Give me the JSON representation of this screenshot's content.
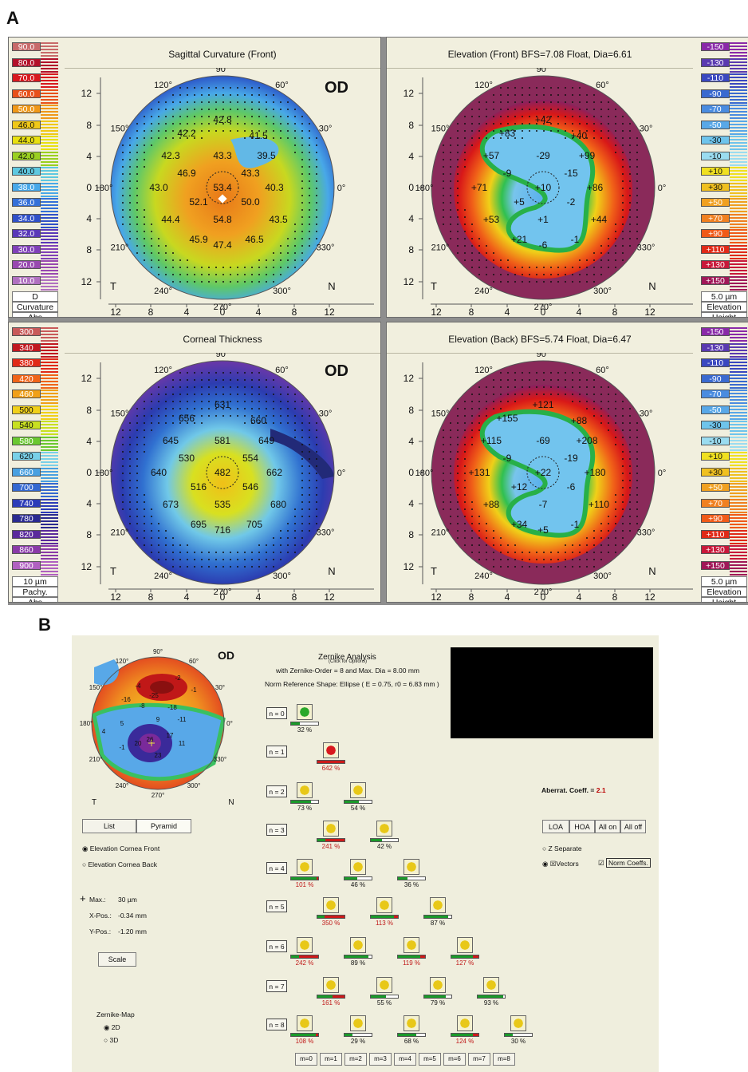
{
  "figure": {
    "label_a": "A",
    "label_b": "B"
  },
  "panel_a": {
    "od_label": "OD",
    "side_left": "T",
    "side_right": "N",
    "axis_ticks_y": [
      "12",
      "8",
      "4",
      "0",
      "4",
      "8",
      "12"
    ],
    "axis_ticks_x": [
      "12",
      "8",
      "4",
      "0",
      "4",
      "8",
      "12"
    ],
    "angles": {
      "a90": "90°",
      "a60": "60°",
      "a30": "30°",
      "a0": "0°",
      "a330": "330°",
      "a300": "300°",
      "a270": "270°",
      "a240": "240°",
      "a210": "210°",
      "a180": "180°",
      "a150": "150°",
      "a120": "120°"
    },
    "sagittal": {
      "title": "Sagittal Curvature (Front)",
      "values": [
        "42.8",
        "41.5",
        "42.2",
        "42.3",
        "43.3",
        "39.5",
        "46.9",
        "43.3",
        "43.0",
        "53.4",
        "40.3",
        "52.1",
        "50.0",
        "44.4",
        "54.8",
        "43.5",
        "45.9",
        "46.5",
        "47.4"
      ]
    },
    "elev_front": {
      "title": "Elevation (Front)  BFS=7.08 Float, Dia=6.61",
      "values": [
        "+42",
        "+40",
        "+83",
        "+57",
        "-29",
        "+99",
        "-9",
        "-15",
        "+71",
        "+10",
        "+86",
        "+5",
        "-2",
        "+53",
        "+1",
        "+44",
        "+21",
        "-1",
        "-6"
      ]
    },
    "thickness": {
      "title": "Corneal Thickness",
      "values": [
        "631",
        "660",
        "656",
        "645",
        "581",
        "649",
        "530",
        "554",
        "640",
        "482",
        "662",
        "516",
        "546",
        "673",
        "535",
        "680",
        "695",
        "705",
        "716"
      ]
    },
    "elev_back": {
      "title": "Elevation (Back)  BFS=5.74 Float, Dia=6.47",
      "values": [
        "+121",
        "+88",
        "+155",
        "+115",
        "-69",
        "+208",
        "-9",
        "-19",
        "+131",
        "+22",
        "+180",
        "+12",
        "-6",
        "+88",
        "-7",
        "+110",
        "+34",
        "-1",
        "+5"
      ]
    },
    "curv_scale": {
      "values": [
        "90.0",
        "80.0",
        "70.0",
        "60.0",
        "50.0",
        "46.0",
        "44.0",
        "42.0",
        "40.0",
        "38.0",
        "36.0",
        "34.0",
        "32.0",
        "30.0",
        "20.0",
        "10.0"
      ],
      "colors": [
        "#c86a6a",
        "#b2102a",
        "#d8181e",
        "#e8501a",
        "#f09818",
        "#f0c818",
        "#e8e010",
        "#9ad020",
        "#5ec8e0",
        "#48a8e8",
        "#3470d8",
        "#3050c8",
        "#5a38b8",
        "#8040b8",
        "#9848b0",
        "#b070c0"
      ],
      "footer": [
        "D",
        "Curvature",
        "Abs"
      ]
    },
    "elev_scale": {
      "values": [
        "-150",
        "-130",
        "-110",
        "-90",
        "-70",
        "-50",
        "-30",
        "-10",
        "+10",
        "+30",
        "+50",
        "+70",
        "+90",
        "+110",
        "+130",
        "+150"
      ],
      "colors": [
        "#8a2aa8",
        "#5a3ab0",
        "#3a48c0",
        "#3a6ad0",
        "#4a8ce0",
        "#58a8e8",
        "#6ec4ec",
        "#9adcf0",
        "#f0e020",
        "#f0c020",
        "#f0a020",
        "#f08020",
        "#f05a18",
        "#e02a18",
        "#c8183a",
        "#a01858"
      ],
      "footer": [
        "5.0 µm",
        "Elevation",
        "Height"
      ]
    },
    "thick_scale": {
      "values": [
        "300",
        "340",
        "380",
        "420",
        "460",
        "500",
        "540",
        "580",
        "620",
        "660",
        "700",
        "740",
        "780",
        "820",
        "860",
        "900"
      ],
      "colors": [
        "#c85a5a",
        "#c01820",
        "#e02a18",
        "#f06418",
        "#f0a018",
        "#f0d018",
        "#c8e020",
        "#6ac830",
        "#78d0e8",
        "#48a0e0",
        "#3468d0",
        "#2c3cb8",
        "#2a2a90",
        "#5a2a9c",
        "#8a3aa8",
        "#b060c0"
      ],
      "footer": [
        "10 µm",
        "Pachy.",
        "Abs"
      ]
    }
  },
  "panel_b": {
    "od_label": "OD",
    "side_left": "T",
    "side_right": "N",
    "angles": {
      "a90": "90°",
      "a60": "60°",
      "a30": "30°",
      "a0": "0°",
      "a330": "330°",
      "a300": "300°",
      "a270": "270°",
      "a240": "240°",
      "a210": "210°",
      "a180": "180°",
      "a150": "150°",
      "a120": "120°"
    },
    "map_values": [
      "-2",
      "-4",
      "-1",
      "-16",
      "-25",
      "-8",
      "-18",
      "5",
      "9",
      "-11",
      "4",
      "26",
      "17",
      "20",
      "11",
      "-1",
      "23"
    ],
    "tabs": [
      "List",
      "Pyramid"
    ],
    "radio_front": "Elevation Cornea Front",
    "radio_back": "Elevation Cornea Back",
    "max_label": "Max.:",
    "max_value": "30 µm",
    "xpos_label": "X-Pos.:",
    "xpos_value": "-0.34 mm",
    "ypos_label": "Y-Pos.:",
    "ypos_value": "-1.20 mm",
    "scale_button": "Scale",
    "zmap_label": "Zernike-Map",
    "zmap_2d": "2D",
    "zmap_3d": "3D",
    "zernike_title": "Zernike Analysis",
    "zernike_subtitle": "(Click for Options)",
    "zernike_line2": "with  Zernike-Order = 8  and  Max. Dia = 8.00 mm",
    "zernike_line3": "Norm Reference Shape: Ellipse ( E = 0.75, r0 = 6.83 mm )",
    "aberr_label": "Aberrat. Coeff.  =",
    "aberr_value": "2.1",
    "buttons": [
      "LOA",
      "HOA",
      "All on",
      "All off"
    ],
    "z_separate": "Z Separate",
    "vectors": "☒Vectors",
    "norm_coeffs": "Norm Coeffs.",
    "m_buttons": [
      "m=0",
      "m=1",
      "m=2",
      "m=3",
      "m=4",
      "m=5",
      "m=6",
      "m=7",
      "m=8"
    ],
    "rows": [
      {
        "n": "n = 0",
        "items": [
          {
            "pct": "32 %",
            "g": 0.32,
            "r": 0,
            "red": false
          }
        ]
      },
      {
        "n": "n = 1",
        "items": [
          {
            "pct": "642 %",
            "g": 0,
            "r": 1,
            "red": true
          }
        ]
      },
      {
        "n": "n = 2",
        "items": [
          {
            "pct": "73 %",
            "g": 0.73,
            "r": 0,
            "red": false
          },
          {
            "pct": "54 %",
            "g": 0.54,
            "r": 0,
            "red": false
          }
        ]
      },
      {
        "n": "n = 3",
        "items": [
          {
            "pct": "241 %",
            "g": 0.3,
            "r": 0.7,
            "red": true
          },
          {
            "pct": "42 %",
            "g": 0.42,
            "r": 0,
            "red": false
          }
        ]
      },
      {
        "n": "n = 4",
        "items": [
          {
            "pct": "101 %",
            "g": 0.95,
            "r": 0.05,
            "red": true
          },
          {
            "pct": "46 %",
            "g": 0.46,
            "r": 0,
            "red": false
          },
          {
            "pct": "36 %",
            "g": 0.36,
            "r": 0,
            "red": false
          }
        ]
      },
      {
        "n": "n = 5",
        "items": [
          {
            "pct": "350 %",
            "g": 0.25,
            "r": 0.75,
            "red": true
          },
          {
            "pct": "113 %",
            "g": 0.85,
            "r": 0.15,
            "red": true
          },
          {
            "pct": "87 %",
            "g": 0.87,
            "r": 0,
            "red": false
          }
        ]
      },
      {
        "n": "n = 6",
        "items": [
          {
            "pct": "242 %",
            "g": 0.3,
            "r": 0.7,
            "red": true
          },
          {
            "pct": "89 %",
            "g": 0.89,
            "r": 0,
            "red": false
          },
          {
            "pct": "119 %",
            "g": 0.82,
            "r": 0.18,
            "red": true
          },
          {
            "pct": "127 %",
            "g": 0.78,
            "r": 0.22,
            "red": true
          }
        ]
      },
      {
        "n": "n = 7",
        "items": [
          {
            "pct": "161 %",
            "g": 0.55,
            "r": 0.45,
            "red": true
          },
          {
            "pct": "55 %",
            "g": 0.55,
            "r": 0,
            "red": false
          },
          {
            "pct": "79 %",
            "g": 0.79,
            "r": 0,
            "red": false
          },
          {
            "pct": "93 %",
            "g": 0.93,
            "r": 0,
            "red": false
          }
        ]
      },
      {
        "n": "n = 8",
        "items": [
          {
            "pct": "108 %",
            "g": 0.9,
            "r": 0.1,
            "red": true
          },
          {
            "pct": "29 %",
            "g": 0.29,
            "r": 0,
            "red": false
          },
          {
            "pct": "68 %",
            "g": 0.68,
            "r": 0,
            "red": false
          },
          {
            "pct": "124 %",
            "g": 0.8,
            "r": 0.2,
            "red": true
          },
          {
            "pct": "30 %",
            "g": 0.3,
            "r": 0,
            "red": false
          }
        ]
      }
    ]
  }
}
